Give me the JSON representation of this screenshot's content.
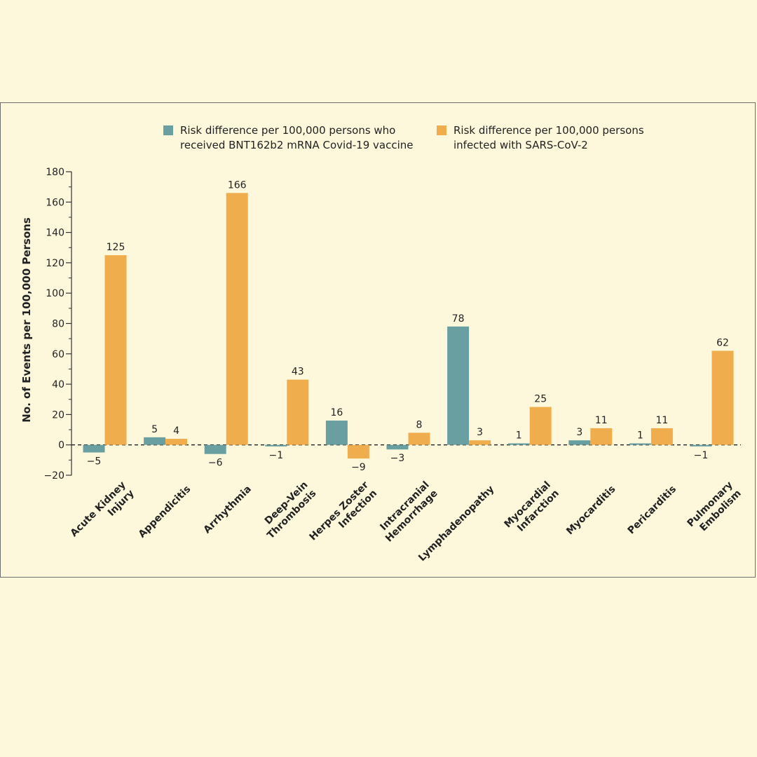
{
  "chart_data": {
    "type": "bar",
    "categories": [
      [
        "Acute Kidney",
        "Injury"
      ],
      [
        "Appendicitis"
      ],
      [
        "Arrhythmia"
      ],
      [
        "Deep-Vein",
        "Thrombosis"
      ],
      [
        "Herpes Zoster",
        "Infection"
      ],
      [
        "Intracranial",
        "Hemorrhage"
      ],
      [
        "Lymphadenopathy"
      ],
      [
        "Myocardial",
        "Infarction"
      ],
      [
        "Myocarditis"
      ],
      [
        "Pericarditis"
      ],
      [
        "Pulmonary",
        "Embolism"
      ]
    ],
    "series": [
      {
        "name": [
          "Risk difference per 100,000 persons who",
          "received BNT162b2 mRNA Covid-19 vaccine"
        ],
        "color": "#6a9fa2",
        "values": [
          -5,
          5,
          -6,
          -1,
          16,
          -3,
          78,
          1,
          3,
          1,
          -1
        ]
      },
      {
        "name": [
          "Risk difference per 100,000 persons",
          "infected with SARS-CoV-2"
        ],
        "color": "#f0ad4e",
        "values": [
          125,
          4,
          166,
          43,
          -9,
          8,
          3,
          25,
          11,
          11,
          62
        ]
      }
    ],
    "ylabel": "No. of Events per 100,000 Persons",
    "ylim": [
      -20,
      180
    ],
    "yticks": [
      -20,
      0,
      20,
      40,
      60,
      80,
      100,
      120,
      140,
      160,
      180
    ],
    "ytick_labels": [
      "−20",
      "0",
      "20",
      "40",
      "60",
      "80",
      "100",
      "120",
      "140",
      "160",
      "180"
    ],
    "value_labels": [
      [
        "−5",
        "5",
        "−6",
        "−1",
        "16",
        "−3",
        "78",
        "1",
        "3",
        "1",
        "−1"
      ],
      [
        "125",
        "4",
        "166",
        "43",
        "−9",
        "8",
        "3",
        "25",
        "11",
        "11",
        "62"
      ]
    ],
    "zero_line": "dashed",
    "legend_position": "top"
  }
}
